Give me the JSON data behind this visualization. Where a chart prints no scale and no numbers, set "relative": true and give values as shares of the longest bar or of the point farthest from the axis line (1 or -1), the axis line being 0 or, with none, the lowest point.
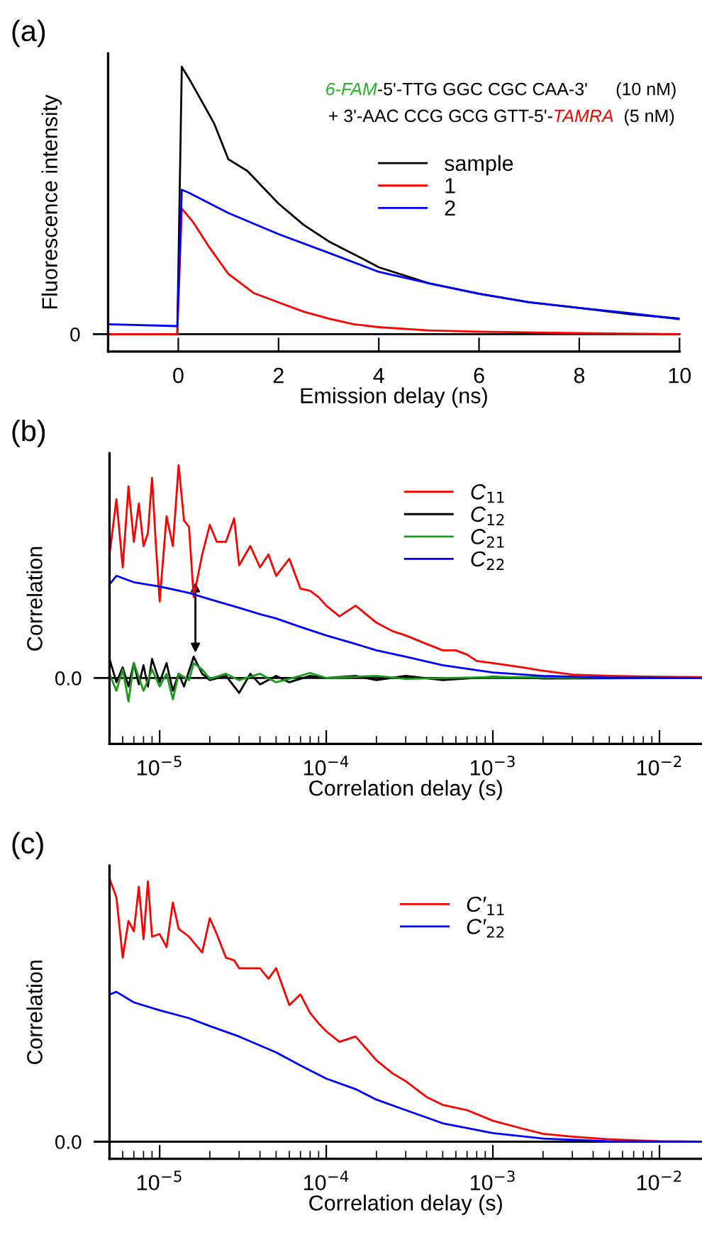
{
  "chart_data": [
    {
      "type": "line",
      "relative": true,
      "xlabel": "Emission delay (ns)",
      "ylabel": "Fluorescence intensity",
      "xlim": [
        -1.4,
        10
      ],
      "xticks": [
        0,
        2,
        4,
        6,
        8,
        10
      ],
      "legend": "right",
      "marker": "none",
      "line_style": "solid",
      "grid": false,
      "ref_lines": [
        {
          "axis": "y",
          "value": 0,
          "label": "0",
          "color": "#000000"
        }
      ],
      "annotations": [
        "(a)",
        "6-FAM",
        "-5'-TTG GGC CGC CAA-3'",
        "(10 nM)",
        "+ 3'-AAC CCG GCG GTT-5'-",
        "TAMRA",
        "(5 nM)"
      ],
      "series": [
        {
          "name": "sample",
          "color": "#000000",
          "x": [
            -1.4,
            -0.02,
            0.07,
            0.25,
            0.54,
            0.72,
            1.0,
            1.38,
            2.0,
            2.5,
            3.0,
            3.7,
            4.0,
            5.0,
            6.0,
            7.0,
            8.0,
            9.0,
            10.0
          ],
          "values": [
            0,
            0,
            1.0,
            0.944,
            0.847,
            0.786,
            0.654,
            0.61,
            0.488,
            0.409,
            0.347,
            0.28,
            0.25,
            0.19,
            0.151,
            0.119,
            0.098,
            0.075,
            0.058
          ]
        },
        {
          "name": "1",
          "color": "#ff0000",
          "x": [
            -1.4,
            -0.02,
            0.07,
            0.3,
            0.6,
            1.0,
            1.5,
            2.0,
            2.5,
            3.0,
            3.5,
            4.0,
            5.0,
            6.0,
            8.0,
            10.0
          ],
          "values": [
            0,
            0,
            0.47,
            0.418,
            0.33,
            0.225,
            0.154,
            0.119,
            0.084,
            0.058,
            0.037,
            0.026,
            0.014,
            0.009,
            0.004,
            0
          ]
        },
        {
          "name": "2",
          "color": "#0000ff",
          "x": [
            -1.4,
            -0.02,
            0.07,
            0.2,
            1.0,
            2.0,
            3.0,
            4.0,
            5.0,
            6.0,
            7.0,
            8.0,
            9.0,
            10.0
          ],
          "values": [
            0.037,
            0.03,
            0.54,
            0.53,
            0.453,
            0.374,
            0.304,
            0.233,
            0.19,
            0.151,
            0.119,
            0.098,
            0.079,
            0.056
          ]
        }
      ]
    },
    {
      "type": "line",
      "relative": true,
      "log": "x",
      "xlabel": "Correlation delay (s)",
      "ylabel": "Correlation",
      "xlim": [
        5e-06,
        0.018
      ],
      "xticks": [
        {
          "value": 1e-05,
          "label": "10$^{−5}$"
        },
        {
          "value": 0.0001,
          "label": "10$^{−4}$"
        },
        {
          "value": 0.001,
          "label": "10$^{−3}$"
        },
        {
          "value": 0.01,
          "label": "10$^{−2}$"
        }
      ],
      "legend": "top right",
      "marker": "none",
      "line_style": "solid",
      "grid": false,
      "ref_lines": [
        {
          "axis": "y",
          "value": 0,
          "label": "0.0",
          "color": "#000000"
        }
      ],
      "annotations": [
        "(b)"
      ],
      "series": [
        {
          "name": "C$_{11}$",
          "color": "#ff0000",
          "x": [
            5e-06,
            5.5e-06,
            6e-06,
            6.5e-06,
            7e-06,
            7.5e-06,
            8e-06,
            8.5e-06,
            9e-06,
            9.5e-06,
            1e-05,
            1.1e-05,
            1.2e-05,
            1.3e-05,
            1.4e-05,
            1.5e-05,
            1.6e-05,
            1.8e-05,
            2e-05,
            2.2e-05,
            2.5e-05,
            2.8e-05,
            3e-05,
            3.5e-05,
            4e-05,
            4.5e-05,
            5e-05,
            6e-05,
            7e-05,
            8e-05,
            9e-05,
            0.0001,
            0.00012,
            0.00015,
            0.0002,
            0.00025,
            0.0003,
            0.0004,
            0.0005,
            0.0006,
            0.0007,
            0.0008,
            0.001,
            0.0015,
            0.002,
            0.003,
            0.005,
            0.01,
            0.018
          ],
          "values": [
            0.58,
            0.84,
            0.52,
            0.9,
            0.64,
            0.82,
            0.62,
            0.68,
            0.94,
            0.62,
            0.36,
            0.76,
            0.62,
            1.0,
            0.74,
            0.71,
            0.38,
            0.58,
            0.72,
            0.64,
            0.64,
            0.75,
            0.53,
            0.62,
            0.52,
            0.58,
            0.48,
            0.56,
            0.42,
            0.41,
            0.38,
            0.34,
            0.29,
            0.34,
            0.26,
            0.22,
            0.2,
            0.16,
            0.13,
            0.13,
            0.11,
            0.08,
            0.07,
            0.05,
            0.034,
            0.016,
            0.01,
            0.006,
            0.004
          ]
        },
        {
          "name": "C$_{12}$",
          "color": "#000000",
          "x": [
            5e-06,
            5.5e-06,
            6e-06,
            6.5e-06,
            7e-06,
            7.5e-06,
            8e-06,
            8.5e-06,
            9e-06,
            1e-05,
            1.1e-05,
            1.2e-05,
            1.3e-05,
            1.4e-05,
            1.6e-05,
            1.8e-05,
            2e-05,
            2.5e-05,
            3e-05,
            3.5e-05,
            4e-05,
            5e-05,
            6e-05,
            8e-05,
            0.0001,
            0.00015,
            0.0002,
            0.0003,
            0.0005,
            0.001,
            0.002,
            0.018
          ],
          "values": [
            0.09,
            -0.02,
            0.05,
            -0.04,
            0.07,
            -0.03,
            0.06,
            -0.04,
            0.09,
            -0.02,
            0.07,
            -0.06,
            0.02,
            -0.04,
            0.1,
            0.02,
            -0.01,
            0.01,
            -0.07,
            0.02,
            -0.03,
            0.01,
            -0.02,
            0.01,
            0,
            0.01,
            -0.01,
            0.01,
            -0.01,
            0.006,
            -0.002,
            0
          ]
        },
        {
          "name": "C$_{21}$",
          "color": "#1a9a1a",
          "x": [
            5e-06,
            5.5e-06,
            6e-06,
            6.5e-06,
            7e-06,
            8e-06,
            9e-06,
            1e-05,
            1.1e-05,
            1.2e-05,
            1.3e-05,
            1.5e-05,
            1.6e-05,
            1.8e-05,
            2e-05,
            2.5e-05,
            3e-05,
            4e-05,
            5e-05,
            7e-05,
            8e-05,
            0.0001,
            0.0002,
            0.0003,
            0.001,
            0.018
          ],
          "values": [
            0.02,
            -0.06,
            0.04,
            -0.11,
            0.07,
            -0.06,
            0.04,
            -0.04,
            0.02,
            -0.1,
            0.02,
            -0.01,
            0.07,
            0.04,
            -0.004,
            0.02,
            -0.01,
            0.02,
            -0.02,
            0.01,
            0.024,
            0,
            0.01,
            -0.004,
            0.004,
            0
          ]
        },
        {
          "name": "C$_{22}$",
          "color": "#0000ff",
          "x": [
            5e-06,
            5.5e-06,
            7e-06,
            1e-05,
            1.5e-05,
            2e-05,
            3e-05,
            4e-05,
            5e-05,
            7e-05,
            0.0001,
            0.00015,
            0.0002,
            0.0003,
            0.0005,
            0.001,
            0.002,
            0.005,
            0.018
          ],
          "values": [
            0.44,
            0.48,
            0.45,
            0.43,
            0.4,
            0.37,
            0.33,
            0.3,
            0.28,
            0.24,
            0.2,
            0.16,
            0.13,
            0.1,
            0.06,
            0.026,
            0.01,
            0.002,
            0
          ]
        }
      ]
    },
    {
      "type": "line",
      "relative": true,
      "log": "x",
      "xlabel": "Correlation delay (s)",
      "ylabel": "Correlation",
      "xlim": [
        5e-06,
        0.018
      ],
      "xticks": [
        {
          "value": 1e-05,
          "label": "10$^{−5}$"
        },
        {
          "value": 0.0001,
          "label": "10$^{−4}$"
        },
        {
          "value": 0.001,
          "label": "10$^{−3}$"
        },
        {
          "value": 0.01,
          "label": "10$^{−2}$"
        }
      ],
      "legend": "top right",
      "marker": "none",
      "line_style": "solid",
      "grid": false,
      "ref_lines": [
        {
          "axis": "y",
          "value": 0,
          "label": "0.0",
          "color": "#000000"
        }
      ],
      "annotations": [
        "(c)"
      ],
      "series": [
        {
          "name": "C′$_{11}$",
          "color": "#ff0000",
          "x": [
            5e-06,
            5.5e-06,
            6e-06,
            6.5e-06,
            7e-06,
            7.5e-06,
            8e-06,
            8.5e-06,
            9e-06,
            1e-05,
            1.1e-05,
            1.2e-05,
            1.3e-05,
            1.5e-05,
            1.8e-05,
            2e-05,
            2.2e-05,
            2.5e-05,
            2.8e-05,
            3e-05,
            3.5e-05,
            4e-05,
            4.5e-05,
            5e-05,
            6e-05,
            7e-05,
            8e-05,
            9e-05,
            0.0001,
            0.00012,
            0.00015,
            0.0002,
            0.00025,
            0.0003,
            0.0004,
            0.0005,
            0.0007,
            0.001,
            0.0015,
            0.002,
            0.003,
            0.005,
            0.01,
            0.018
          ],
          "values": [
            1.0,
            0.93,
            0.7,
            0.84,
            0.8,
            0.97,
            0.77,
            0.99,
            0.78,
            0.79,
            0.74,
            0.91,
            0.81,
            0.78,
            0.72,
            0.85,
            0.79,
            0.7,
            0.69,
            0.66,
            0.66,
            0.66,
            0.62,
            0.66,
            0.52,
            0.56,
            0.49,
            0.45,
            0.42,
            0.38,
            0.4,
            0.31,
            0.26,
            0.23,
            0.17,
            0.14,
            0.12,
            0.08,
            0.05,
            0.03,
            0.019,
            0.009,
            0.002,
            0
          ]
        },
        {
          "name": "C′$_{22}$",
          "color": "#0000ff",
          "x": [
            5e-06,
            5.5e-06,
            7e-06,
            1e-05,
            1.5e-05,
            2e-05,
            3e-05,
            5e-05,
            7e-05,
            0.0001,
            0.00015,
            0.0002,
            0.0003,
            0.0005,
            0.001,
            0.002,
            0.005,
            0.018
          ],
          "values": [
            0.56,
            0.57,
            0.53,
            0.5,
            0.47,
            0.44,
            0.4,
            0.34,
            0.29,
            0.24,
            0.2,
            0.16,
            0.12,
            0.07,
            0.033,
            0.012,
            0.002,
            0
          ]
        }
      ]
    }
  ]
}
